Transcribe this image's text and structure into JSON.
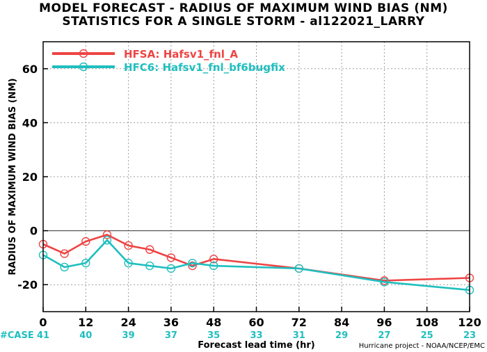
{
  "title_line1": "MODEL FORECAST - RADIUS OF MAXIMUM WIND BIAS (NM)",
  "title_line2": "STATISTICS FOR A SINGLE STORM - al122021_LARRY",
  "credit": "Hurricane project - NOAA/NCEP/EMC",
  "case_label": "#CASE",
  "case_color": "#1fbfbf",
  "chart_data": {
    "type": "line",
    "xlabel": "Forecast lead time (hr)",
    "ylabel": "RADIUS OF MAXIMUM WIND BIAS (NM)",
    "xlim": [
      0,
      120
    ],
    "ylim": [
      -30,
      70
    ],
    "xticks": [
      0,
      12,
      24,
      36,
      48,
      60,
      72,
      84,
      96,
      108,
      120
    ],
    "yticks": [
      -20,
      0,
      20,
      40,
      60
    ],
    "grid": "dashed vertical and horizontal",
    "zero_line": true,
    "legend_position": "top-left",
    "cases": [
      41,
      40,
      39,
      37,
      35,
      33,
      31,
      29,
      27,
      25,
      23
    ],
    "series": [
      {
        "name": "HFSA: Hafsv1_fnl_A",
        "color": "#ee4444",
        "x": [
          0,
          6,
          12,
          18,
          24,
          30,
          36,
          42,
          48,
          72,
          96,
          120
        ],
        "y": [
          -5,
          -8.5,
          -4,
          -1.5,
          -5.5,
          -7,
          -10,
          -13,
          -10.5,
          -14,
          -18.5,
          -17.5
        ]
      },
      {
        "name": "HFC6: Hafsv1_fnl_bf6bugfix",
        "color": "#1fbfbf",
        "x": [
          0,
          6,
          12,
          18,
          24,
          30,
          36,
          42,
          48,
          72,
          96,
          120
        ],
        "y": [
          -9,
          -13.5,
          -12,
          -3.5,
          -12,
          -13,
          -14,
          -12,
          -13,
          -14,
          -19,
          -22
        ]
      }
    ]
  }
}
